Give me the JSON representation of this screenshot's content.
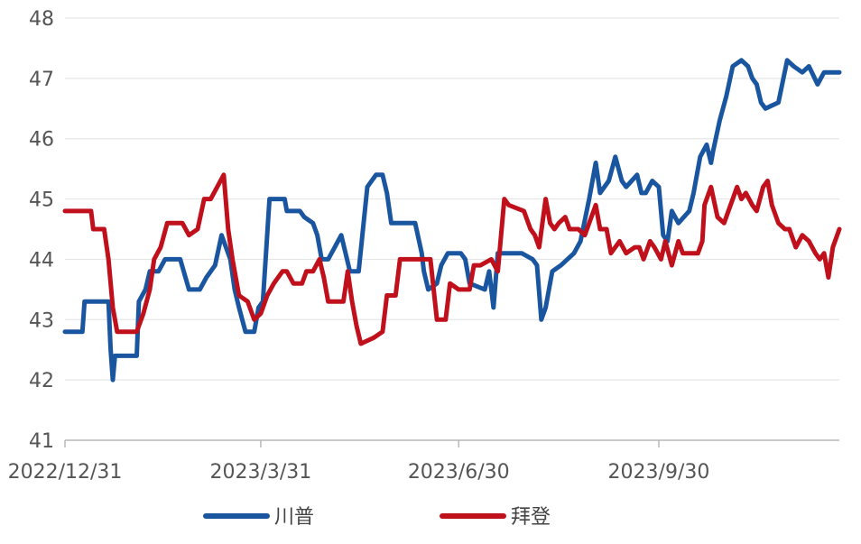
{
  "chart_data": {
    "type": "line",
    "title": "",
    "xlabel": "",
    "ylabel": "",
    "ylim": [
      41,
      48
    ],
    "yticks": [
      41,
      42,
      43,
      44,
      45,
      46,
      47,
      48
    ],
    "grid": "horizontal",
    "legend_position": "bottom",
    "xtick_labels": [
      "2022/12/31",
      "2023/3/31",
      "2023/6/30",
      "2023/9/30"
    ],
    "x_ticks_dates": [
      "2022-12-31",
      "2023-03-31",
      "2023-06-30",
      "2023-09-30"
    ],
    "x_range_dates": [
      "2022-12-31",
      "2023-12-22"
    ],
    "series": [
      {
        "name": "川普",
        "color": "#1a56a0",
        "points": [
          [
            "2022-12-31",
            42.8
          ],
          [
            "2023-01-08",
            42.8
          ],
          [
            "2023-01-09",
            43.3
          ],
          [
            "2023-01-20",
            43.3
          ],
          [
            "2023-01-21",
            42.5
          ],
          [
            "2023-01-22",
            42.0
          ],
          [
            "2023-01-23",
            42.4
          ],
          [
            "2023-02-02",
            42.4
          ],
          [
            "2023-02-03",
            43.3
          ],
          [
            "2023-02-06",
            43.5
          ],
          [
            "2023-02-08",
            43.8
          ],
          [
            "2023-02-12",
            43.8
          ],
          [
            "2023-02-15",
            44.0
          ],
          [
            "2023-02-22",
            44.0
          ],
          [
            "2023-02-26",
            43.5
          ],
          [
            "2023-03-03",
            43.5
          ],
          [
            "2023-03-06",
            43.7
          ],
          [
            "2023-03-10",
            43.9
          ],
          [
            "2023-03-13",
            44.4
          ],
          [
            "2023-03-17",
            44.0
          ],
          [
            "2023-03-19",
            43.5
          ],
          [
            "2023-03-21",
            43.2
          ],
          [
            "2023-03-24",
            42.8
          ],
          [
            "2023-03-28",
            42.8
          ],
          [
            "2023-03-30",
            43.2
          ],
          [
            "2023-04-01",
            43.3
          ],
          [
            "2023-04-04",
            45.0
          ],
          [
            "2023-04-11",
            45.0
          ],
          [
            "2023-04-12",
            44.8
          ],
          [
            "2023-04-18",
            44.8
          ],
          [
            "2023-04-20",
            44.7
          ],
          [
            "2023-04-24",
            44.6
          ],
          [
            "2023-04-26",
            44.4
          ],
          [
            "2023-04-28",
            44.0
          ],
          [
            "2023-05-01",
            44.0
          ],
          [
            "2023-05-04",
            44.2
          ],
          [
            "2023-05-07",
            44.4
          ],
          [
            "2023-05-09",
            44.1
          ],
          [
            "2023-05-11",
            43.8
          ],
          [
            "2023-05-15",
            43.8
          ],
          [
            "2023-05-19",
            45.2
          ],
          [
            "2023-05-23",
            45.4
          ],
          [
            "2023-05-26",
            45.4
          ],
          [
            "2023-05-28",
            45.1
          ],
          [
            "2023-05-30",
            44.6
          ],
          [
            "2023-06-10",
            44.6
          ],
          [
            "2023-06-13",
            44.1
          ],
          [
            "2023-06-14",
            43.8
          ],
          [
            "2023-06-16",
            43.5
          ],
          [
            "2023-06-20",
            43.6
          ],
          [
            "2023-06-22",
            43.9
          ],
          [
            "2023-06-25",
            44.1
          ],
          [
            "2023-07-01",
            44.1
          ],
          [
            "2023-07-03",
            44.0
          ],
          [
            "2023-07-05",
            43.6
          ],
          [
            "2023-07-12",
            43.5
          ],
          [
            "2023-07-14",
            43.8
          ],
          [
            "2023-07-16",
            43.2
          ],
          [
            "2023-07-18",
            44.1
          ],
          [
            "2023-07-29",
            44.1
          ],
          [
            "2023-08-03",
            44.0
          ],
          [
            "2023-08-05",
            43.9
          ],
          [
            "2023-08-07",
            43.0
          ],
          [
            "2023-08-09",
            43.2
          ],
          [
            "2023-08-12",
            43.8
          ],
          [
            "2023-08-16",
            43.9
          ],
          [
            "2023-08-19",
            44.0
          ],
          [
            "2023-08-22",
            44.1
          ],
          [
            "2023-08-25",
            44.3
          ],
          [
            "2023-08-29",
            45.0
          ],
          [
            "2023-09-01",
            45.6
          ],
          [
            "2023-09-03",
            45.1
          ],
          [
            "2023-09-07",
            45.3
          ],
          [
            "2023-09-10",
            45.7
          ],
          [
            "2023-09-13",
            45.3
          ],
          [
            "2023-09-15",
            45.2
          ],
          [
            "2023-09-20",
            45.4
          ],
          [
            "2023-09-22",
            45.1
          ],
          [
            "2023-09-24",
            45.1
          ],
          [
            "2023-09-27",
            45.3
          ],
          [
            "2023-09-30",
            45.2
          ],
          [
            "2023-10-02",
            44.4
          ],
          [
            "2023-10-04",
            44.3
          ],
          [
            "2023-10-06",
            44.8
          ],
          [
            "2023-10-09",
            44.6
          ],
          [
            "2023-10-14",
            44.8
          ],
          [
            "2023-10-16",
            45.1
          ],
          [
            "2023-10-19",
            45.7
          ],
          [
            "2023-10-22",
            45.9
          ],
          [
            "2023-10-24",
            45.6
          ],
          [
            "2023-10-25",
            45.8
          ],
          [
            "2023-10-28",
            46.3
          ],
          [
            "2023-10-31",
            46.7
          ],
          [
            "2023-11-03",
            47.2
          ],
          [
            "2023-11-07",
            47.3
          ],
          [
            "2023-11-10",
            47.2
          ],
          [
            "2023-11-12",
            47.0
          ],
          [
            "2023-11-14",
            46.9
          ],
          [
            "2023-11-16",
            46.6
          ],
          [
            "2023-11-18",
            46.5
          ],
          [
            "2023-11-24",
            46.6
          ],
          [
            "2023-11-28",
            47.3
          ],
          [
            "2023-12-01",
            47.2
          ],
          [
            "2023-12-05",
            47.1
          ],
          [
            "2023-12-08",
            47.2
          ],
          [
            "2023-12-12",
            46.9
          ],
          [
            "2023-12-15",
            47.1
          ],
          [
            "2023-12-22",
            47.1
          ]
        ]
      },
      {
        "name": "拜登",
        "color": "#c0101c",
        "points": [
          [
            "2022-12-31",
            44.8
          ],
          [
            "2023-01-12",
            44.8
          ],
          [
            "2023-01-13",
            44.5
          ],
          [
            "2023-01-18",
            44.5
          ],
          [
            "2023-01-20",
            44.0
          ],
          [
            "2023-01-22",
            43.2
          ],
          [
            "2023-01-24",
            42.8
          ],
          [
            "2023-02-02",
            42.8
          ],
          [
            "2023-02-05",
            43.1
          ],
          [
            "2023-02-08",
            43.5
          ],
          [
            "2023-02-10",
            44.0
          ],
          [
            "2023-02-13",
            44.2
          ],
          [
            "2023-02-16",
            44.6
          ],
          [
            "2023-02-23",
            44.6
          ],
          [
            "2023-02-26",
            44.4
          ],
          [
            "2023-03-02",
            44.5
          ],
          [
            "2023-03-05",
            45.0
          ],
          [
            "2023-03-08",
            45.0
          ],
          [
            "2023-03-11",
            45.2
          ],
          [
            "2023-03-14",
            45.4
          ],
          [
            "2023-03-16",
            44.5
          ],
          [
            "2023-03-18",
            44.0
          ],
          [
            "2023-03-21",
            43.4
          ],
          [
            "2023-03-25",
            43.3
          ],
          [
            "2023-03-28",
            43.0
          ],
          [
            "2023-03-31",
            43.1
          ],
          [
            "2023-04-03",
            43.4
          ],
          [
            "2023-04-06",
            43.6
          ],
          [
            "2023-04-10",
            43.8
          ],
          [
            "2023-04-12",
            43.8
          ],
          [
            "2023-04-15",
            43.6
          ],
          [
            "2023-04-19",
            43.6
          ],
          [
            "2023-04-21",
            43.8
          ],
          [
            "2023-04-24",
            43.8
          ],
          [
            "2023-04-27",
            44.0
          ],
          [
            "2023-04-29",
            43.7
          ],
          [
            "2023-05-01",
            43.3
          ],
          [
            "2023-05-08",
            43.3
          ],
          [
            "2023-05-10",
            43.8
          ],
          [
            "2023-05-12",
            43.3
          ],
          [
            "2023-05-14",
            42.9
          ],
          [
            "2023-05-16",
            42.6
          ],
          [
            "2023-05-22",
            42.7
          ],
          [
            "2023-05-26",
            42.8
          ],
          [
            "2023-05-28",
            43.4
          ],
          [
            "2023-06-01",
            43.4
          ],
          [
            "2023-06-03",
            44.0
          ],
          [
            "2023-06-17",
            44.0
          ],
          [
            "2023-06-20",
            43.0
          ],
          [
            "2023-06-24",
            43.0
          ],
          [
            "2023-06-26",
            43.6
          ],
          [
            "2023-06-30",
            43.5
          ],
          [
            "2023-07-05",
            43.5
          ],
          [
            "2023-07-07",
            43.9
          ],
          [
            "2023-07-10",
            43.9
          ],
          [
            "2023-07-15",
            44.0
          ],
          [
            "2023-07-18",
            43.8
          ],
          [
            "2023-07-21",
            45.0
          ],
          [
            "2023-07-23",
            44.9
          ],
          [
            "2023-07-30",
            44.8
          ],
          [
            "2023-08-02",
            44.5
          ],
          [
            "2023-08-04",
            44.4
          ],
          [
            "2023-08-06",
            44.2
          ],
          [
            "2023-08-09",
            45.0
          ],
          [
            "2023-08-11",
            44.6
          ],
          [
            "2023-08-13",
            44.5
          ],
          [
            "2023-08-15",
            44.6
          ],
          [
            "2023-08-18",
            44.7
          ],
          [
            "2023-08-20",
            44.5
          ],
          [
            "2023-08-24",
            44.5
          ],
          [
            "2023-08-27",
            44.4
          ],
          [
            "2023-08-29",
            44.6
          ],
          [
            "2023-09-01",
            44.9
          ],
          [
            "2023-09-03",
            44.5
          ],
          [
            "2023-09-06",
            44.5
          ],
          [
            "2023-09-08",
            44.1
          ],
          [
            "2023-09-12",
            44.3
          ],
          [
            "2023-09-15",
            44.1
          ],
          [
            "2023-09-19",
            44.2
          ],
          [
            "2023-09-21",
            44.2
          ],
          [
            "2023-09-23",
            44.0
          ],
          [
            "2023-09-26",
            44.3
          ],
          [
            "2023-09-28",
            44.2
          ],
          [
            "2023-10-01",
            44.0
          ],
          [
            "2023-10-03",
            44.3
          ],
          [
            "2023-10-06",
            43.9
          ],
          [
            "2023-10-09",
            44.3
          ],
          [
            "2023-10-11",
            44.1
          ],
          [
            "2023-10-18",
            44.1
          ],
          [
            "2023-10-20",
            44.3
          ],
          [
            "2023-10-21",
            44.9
          ],
          [
            "2023-10-24",
            45.2
          ],
          [
            "2023-10-27",
            44.7
          ],
          [
            "2023-10-30",
            44.6
          ],
          [
            "2023-11-01",
            44.8
          ],
          [
            "2023-11-03",
            45.0
          ],
          [
            "2023-11-05",
            45.2
          ],
          [
            "2023-11-07",
            45.0
          ],
          [
            "2023-11-09",
            45.1
          ],
          [
            "2023-11-12",
            44.9
          ],
          [
            "2023-11-14",
            44.8
          ],
          [
            "2023-11-17",
            45.2
          ],
          [
            "2023-11-19",
            45.3
          ],
          [
            "2023-11-21",
            44.9
          ],
          [
            "2023-11-24",
            44.6
          ],
          [
            "2023-11-27",
            44.5
          ],
          [
            "2023-11-29",
            44.5
          ],
          [
            "2023-12-02",
            44.2
          ],
          [
            "2023-12-05",
            44.4
          ],
          [
            "2023-12-08",
            44.3
          ],
          [
            "2023-12-11",
            44.1
          ],
          [
            "2023-12-13",
            44.0
          ],
          [
            "2023-12-15",
            44.1
          ],
          [
            "2023-12-17",
            43.7
          ],
          [
            "2023-12-19",
            44.2
          ],
          [
            "2023-12-22",
            44.5
          ]
        ]
      }
    ]
  }
}
